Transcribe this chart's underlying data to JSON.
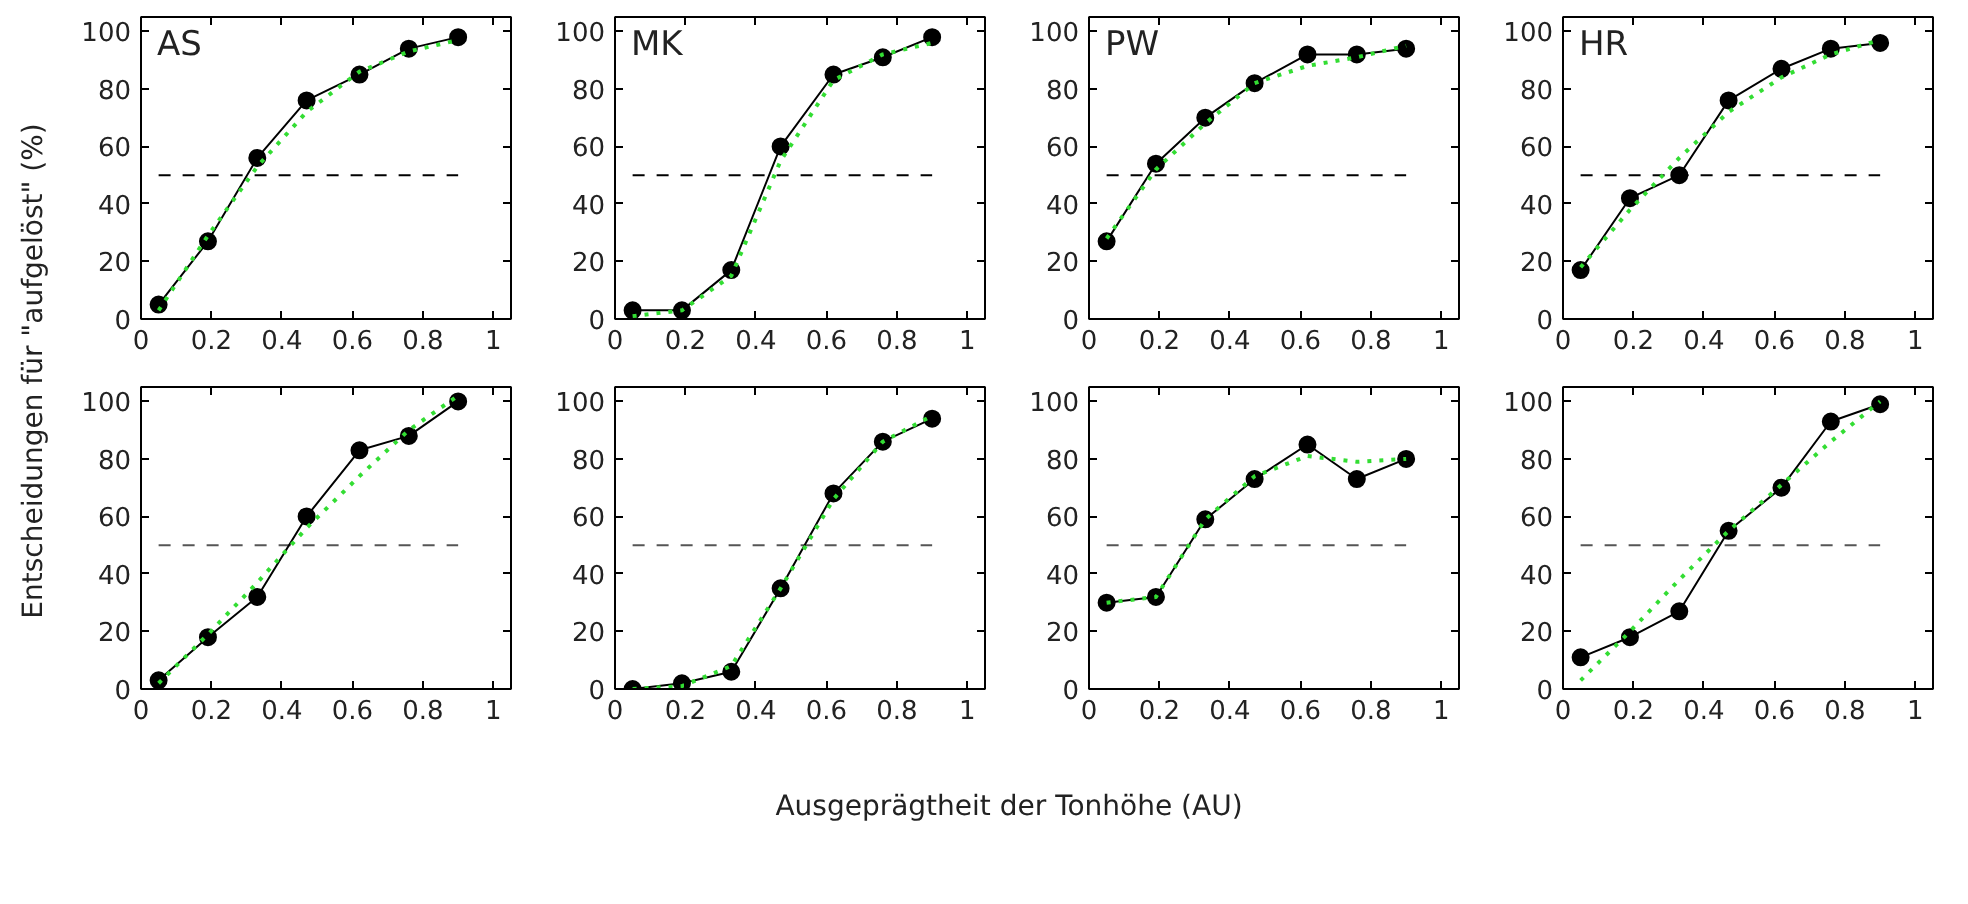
{
  "chart_data": [
    {
      "type": "line",
      "title": "AS",
      "ylabel": "Entscheidungen für \"aufgelöst\" (%)",
      "x": [
        0.05,
        0.19,
        0.33,
        0.47,
        0.62,
        0.76,
        0.9
      ],
      "xlim": [
        0,
        1.05
      ],
      "ylim": [
        0,
        105
      ],
      "xticks": [
        0,
        0.2,
        0.4,
        0.6,
        0.8,
        1
      ],
      "yticks": [
        0,
        20,
        40,
        60,
        80,
        100
      ],
      "marker": "circle",
      "grid": false,
      "ref_lines": [
        {
          "axis": "y",
          "value": 50,
          "line_style": "dashed",
          "color": "#000000"
        }
      ],
      "series": [
        {
          "color": "#000000",
          "values": [
            5,
            27,
            56,
            76,
            85,
            94,
            98
          ]
        },
        {
          "type": "line",
          "color": "#33dd33",
          "line_style": "dotted",
          "marker": "none",
          "values": [
            3,
            29,
            53,
            72,
            86,
            93,
            97
          ]
        }
      ]
    },
    {
      "type": "line",
      "title": "MK",
      "x": [
        0.05,
        0.19,
        0.33,
        0.47,
        0.62,
        0.76,
        0.9
      ],
      "xlim": [
        0,
        1.05
      ],
      "ylim": [
        0,
        105
      ],
      "xticks": [
        0,
        0.2,
        0.4,
        0.6,
        0.8,
        1
      ],
      "yticks": [
        0,
        20,
        40,
        60,
        80,
        100
      ],
      "marker": "circle",
      "grid": false,
      "ref_lines": [
        {
          "axis": "y",
          "value": 50,
          "line_style": "dashed",
          "color": "#000000"
        }
      ],
      "series": [
        {
          "color": "#000000",
          "values": [
            3,
            3,
            17,
            60,
            85,
            91,
            98
          ]
        },
        {
          "type": "line",
          "color": "#33dd33",
          "line_style": "dotted",
          "marker": "none",
          "values": [
            1,
            3,
            15,
            55,
            83,
            92,
            96
          ]
        }
      ]
    },
    {
      "type": "line",
      "title": "PW",
      "x": [
        0.05,
        0.19,
        0.33,
        0.47,
        0.62,
        0.76,
        0.9
      ],
      "xlim": [
        0,
        1.05
      ],
      "ylim": [
        0,
        105
      ],
      "xticks": [
        0,
        0.2,
        0.4,
        0.6,
        0.8,
        1
      ],
      "yticks": [
        0,
        20,
        40,
        60,
        80,
        100
      ],
      "marker": "circle",
      "grid": false,
      "ref_lines": [
        {
          "axis": "y",
          "value": 50,
          "line_style": "dashed",
          "color": "#000000"
        }
      ],
      "series": [
        {
          "color": "#000000",
          "values": [
            27,
            54,
            70,
            82,
            92,
            92,
            94
          ]
        },
        {
          "type": "line",
          "color": "#33dd33",
          "line_style": "dotted",
          "marker": "none",
          "values": [
            28,
            52,
            68,
            82,
            88,
            91,
            95
          ]
        }
      ]
    },
    {
      "type": "line",
      "title": "HR",
      "x": [
        0.05,
        0.19,
        0.33,
        0.47,
        0.62,
        0.76,
        0.9
      ],
      "xlim": [
        0,
        1.05
      ],
      "ylim": [
        0,
        105
      ],
      "xticks": [
        0,
        0.2,
        0.4,
        0.6,
        0.8,
        1
      ],
      "yticks": [
        0,
        20,
        40,
        60,
        80,
        100
      ],
      "marker": "circle",
      "grid": false,
      "ref_lines": [
        {
          "axis": "y",
          "value": 50,
          "line_style": "dashed",
          "color": "#000000"
        }
      ],
      "series": [
        {
          "color": "#000000",
          "values": [
            17,
            42,
            50,
            76,
            87,
            94,
            96
          ]
        },
        {
          "type": "line",
          "color": "#33dd33",
          "line_style": "dotted",
          "marker": "none",
          "values": [
            18,
            38,
            56,
            72,
            84,
            92,
            97
          ]
        }
      ]
    },
    {
      "type": "line",
      "x": [
        0.05,
        0.19,
        0.33,
        0.47,
        0.62,
        0.76,
        0.9
      ],
      "xlim": [
        0,
        1.05
      ],
      "ylim": [
        0,
        105
      ],
      "xticks": [
        0,
        0.2,
        0.4,
        0.6,
        0.8,
        1
      ],
      "yticks": [
        0,
        20,
        40,
        60,
        80,
        100
      ],
      "marker": "circle",
      "grid": false,
      "ref_lines": [
        {
          "axis": "y",
          "value": 50,
          "line_style": "dashed",
          "color": "#555555"
        }
      ],
      "series": [
        {
          "color": "#000000",
          "values": [
            3,
            18,
            32,
            60,
            83,
            88,
            100
          ]
        },
        {
          "type": "line",
          "color": "#33dd33",
          "line_style": "dotted",
          "marker": "none",
          "values": [
            2,
            19,
            37,
            56,
            74,
            90,
            102
          ]
        }
      ]
    },
    {
      "type": "line",
      "x": [
        0.05,
        0.19,
        0.33,
        0.47,
        0.62,
        0.76,
        0.9
      ],
      "xlim": [
        0,
        1.05
      ],
      "ylim": [
        0,
        105
      ],
      "xticks": [
        0,
        0.2,
        0.4,
        0.6,
        0.8,
        1
      ],
      "yticks": [
        0,
        20,
        40,
        60,
        80,
        100
      ],
      "marker": "circle",
      "grid": false,
      "ref_lines": [
        {
          "axis": "y",
          "value": 50,
          "line_style": "dashed",
          "color": "#555555"
        }
      ],
      "series": [
        {
          "color": "#000000",
          "values": [
            0,
            2,
            6,
            35,
            68,
            86,
            94
          ]
        },
        {
          "type": "line",
          "color": "#33dd33",
          "line_style": "dotted",
          "marker": "none",
          "values": [
            0,
            1,
            8,
            35,
            66,
            86,
            95
          ]
        }
      ],
      "xlabel": "Ausgeprägtheit der Tonhöhe (AU)"
    },
    {
      "type": "line",
      "x": [
        0.05,
        0.19,
        0.33,
        0.47,
        0.62,
        0.76,
        0.9
      ],
      "xlim": [
        0,
        1.05
      ],
      "ylim": [
        0,
        105
      ],
      "xticks": [
        0,
        0.2,
        0.4,
        0.6,
        0.8,
        1
      ],
      "yticks": [
        0,
        20,
        40,
        60,
        80,
        100
      ],
      "marker": "circle",
      "grid": false,
      "ref_lines": [
        {
          "axis": "y",
          "value": 50,
          "line_style": "dashed",
          "color": "#555555"
        }
      ],
      "series": [
        {
          "color": "#000000",
          "values": [
            30,
            32,
            59,
            73,
            85,
            73,
            80
          ]
        },
        {
          "type": "line",
          "color": "#33dd33",
          "line_style": "dotted",
          "marker": "none",
          "values": [
            30,
            32,
            59,
            74,
            81,
            79,
            80
          ]
        }
      ]
    },
    {
      "type": "line",
      "x": [
        0.05,
        0.19,
        0.33,
        0.47,
        0.62,
        0.76,
        0.9
      ],
      "xlim": [
        0,
        1.05
      ],
      "ylim": [
        0,
        105
      ],
      "xticks": [
        0,
        0.2,
        0.4,
        0.6,
        0.8,
        1
      ],
      "yticks": [
        0,
        20,
        40,
        60,
        80,
        100
      ],
      "marker": "circle",
      "grid": false,
      "ref_lines": [
        {
          "axis": "y",
          "value": 50,
          "line_style": "dashed",
          "color": "#555555"
        }
      ],
      "series": [
        {
          "color": "#000000",
          "values": [
            11,
            18,
            27,
            55,
            70,
            93,
            99
          ]
        },
        {
          "type": "line",
          "color": "#33dd33",
          "line_style": "dotted",
          "marker": "none",
          "values": [
            3,
            20,
            38,
            55,
            71,
            86,
            100
          ]
        }
      ]
    }
  ]
}
